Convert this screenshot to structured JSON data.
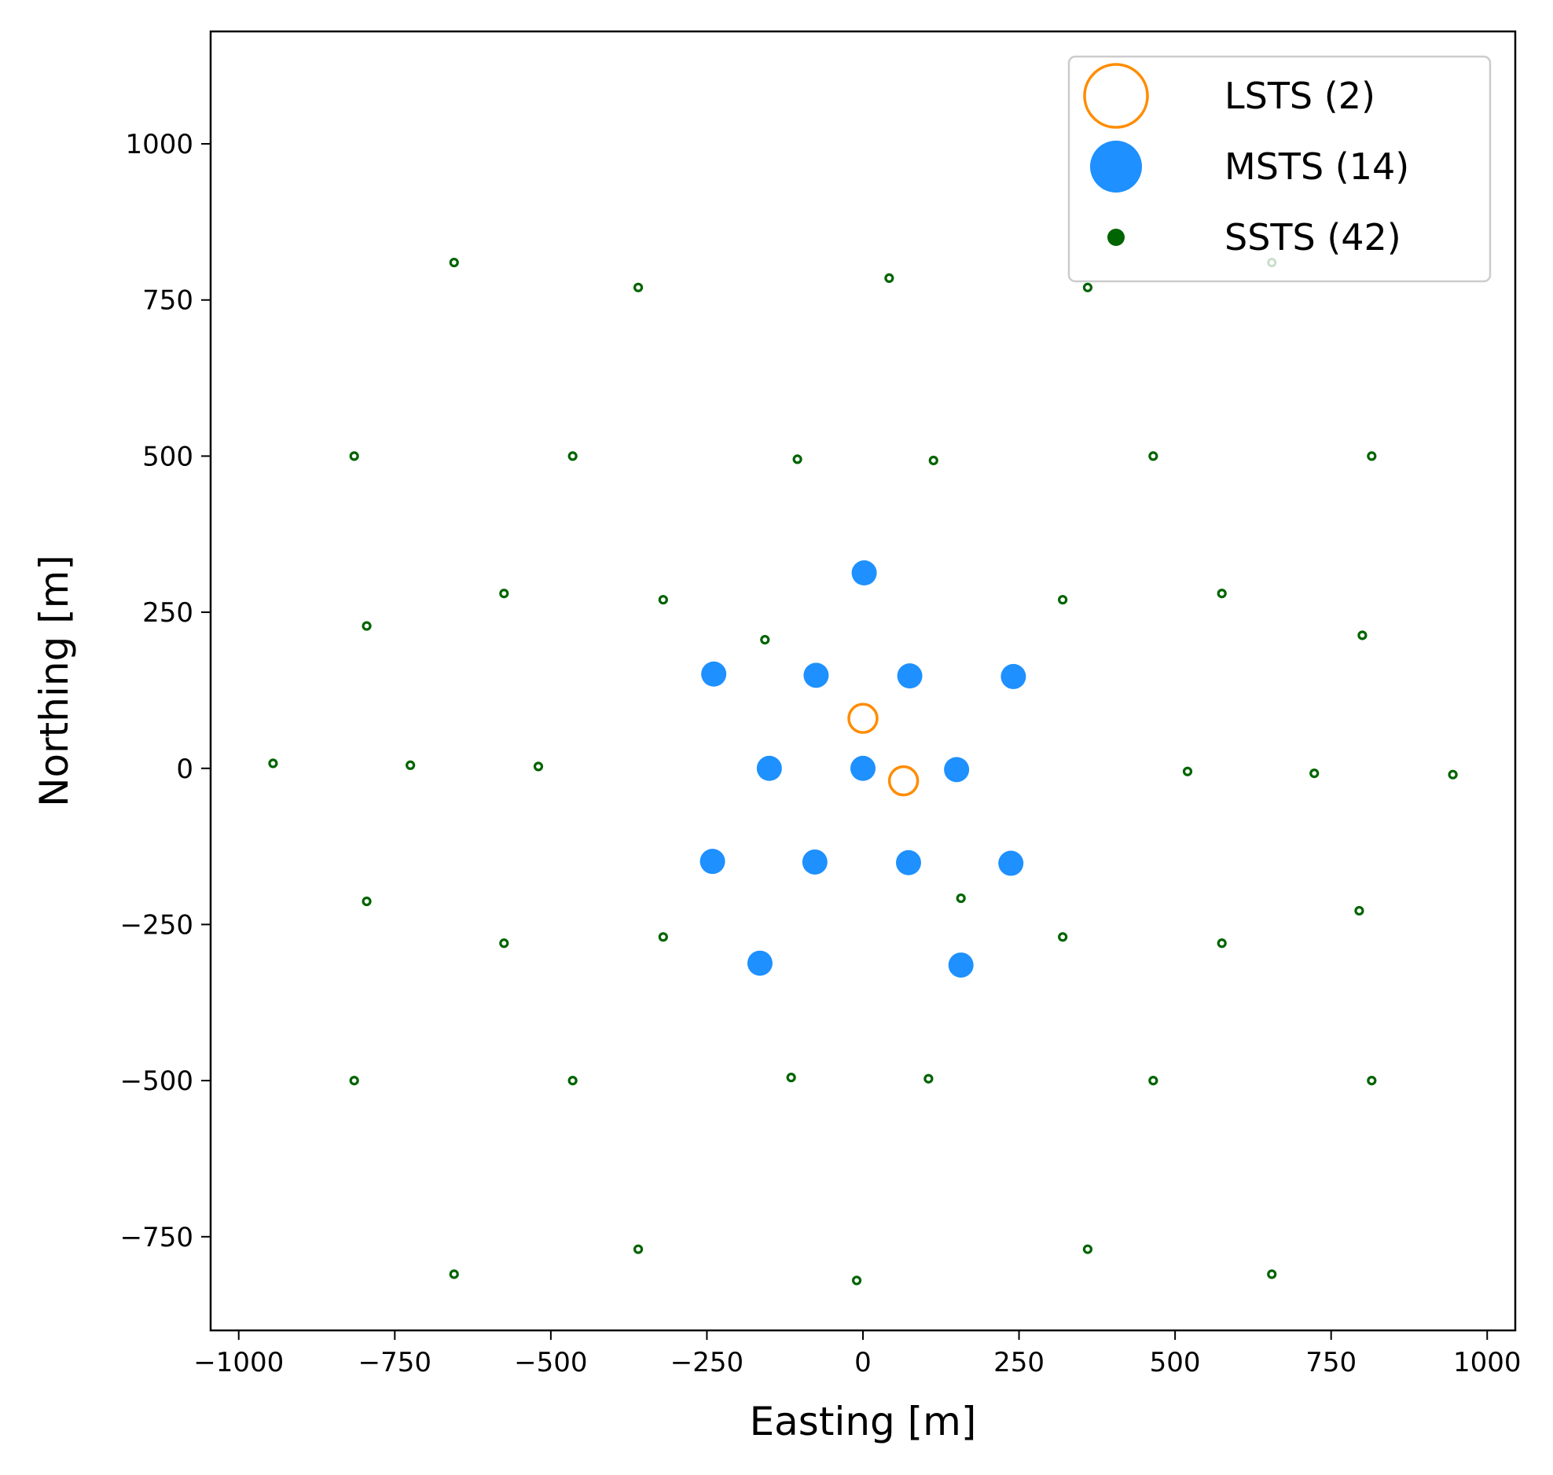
{
  "chart_data": {
    "type": "scatter",
    "title": "",
    "xlabel": "Easting [m]",
    "ylabel": "Northing [m]",
    "xlim": [
      -1045,
      1045
    ],
    "ylim": [
      -900,
      1180
    ],
    "xticks": [
      -1000,
      -750,
      -500,
      -250,
      0,
      250,
      500,
      750,
      1000
    ],
    "yticks": [
      -750,
      -500,
      -250,
      0,
      250,
      500,
      750,
      1000
    ],
    "grid": false,
    "legend_position": "top-right",
    "series": [
      {
        "name": "LSTS (2)",
        "color": "#ff8c00",
        "marker": "open-circle",
        "points": [
          [
            0,
            80
          ],
          [
            65,
            -20
          ]
        ]
      },
      {
        "name": "MSTS (14)",
        "color": "#1e90ff",
        "marker": "filled-circle",
        "points": [
          [
            2,
            313
          ],
          [
            -239,
            151
          ],
          [
            -75,
            149
          ],
          [
            75,
            148
          ],
          [
            241,
            147
          ],
          [
            -150,
            0
          ],
          [
            0,
            0
          ],
          [
            150,
            -2
          ],
          [
            -241,
            -149
          ],
          [
            -77,
            -150
          ],
          [
            73,
            -151
          ],
          [
            237,
            -152
          ],
          [
            -165,
            -312
          ],
          [
            157,
            -315
          ]
        ]
      },
      {
        "name": "SSTS (42)",
        "color": "#006400",
        "marker": "small-circle",
        "points": [
          [
            -655,
            810
          ],
          [
            -360,
            770
          ],
          [
            42,
            785
          ],
          [
            360,
            770
          ],
          [
            655,
            810
          ],
          [
            -815,
            500
          ],
          [
            -465,
            500
          ],
          [
            -105,
            495
          ],
          [
            113,
            493
          ],
          [
            465,
            500
          ],
          [
            815,
            500
          ],
          [
            -575,
            280
          ],
          [
            -320,
            270
          ],
          [
            -795,
            228
          ],
          [
            -157,
            206
          ],
          [
            320,
            270
          ],
          [
            575,
            280
          ],
          [
            800,
            213
          ],
          [
            -945,
            8
          ],
          [
            -725,
            5
          ],
          [
            -520,
            3
          ],
          [
            520,
            -5
          ],
          [
            723,
            -8
          ],
          [
            945,
            -10
          ],
          [
            -795,
            -213
          ],
          [
            157,
            -208
          ],
          [
            -575,
            -280
          ],
          [
            -320,
            -270
          ],
          [
            320,
            -270
          ],
          [
            575,
            -280
          ],
          [
            795,
            -228
          ],
          [
            -815,
            -500
          ],
          [
            -465,
            -500
          ],
          [
            -115,
            -495
          ],
          [
            105,
            -497
          ],
          [
            465,
            -500
          ],
          [
            815,
            -500
          ],
          [
            -655,
            -810
          ],
          [
            -360,
            -770
          ],
          [
            -10,
            -820
          ],
          [
            360,
            -770
          ],
          [
            655,
            -810
          ]
        ]
      }
    ]
  }
}
